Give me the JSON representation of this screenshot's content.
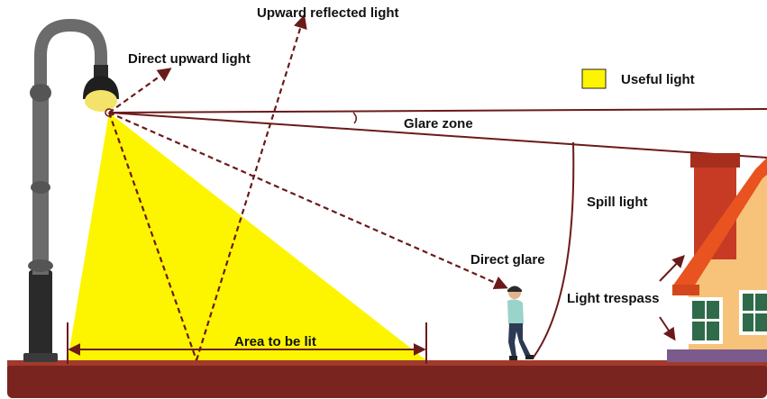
{
  "labels": {
    "upward_reflected": "Upward reflected light",
    "direct_upward": "Direct upward light",
    "useful_light": "Useful light",
    "glare_zone": "Glare zone",
    "spill_light": "Spill light",
    "direct_glare": "Direct glare",
    "light_trespass": "Light trespass",
    "area_to_be_lit": "Area to be lit"
  },
  "colors": {
    "useful_light": "#fdf500",
    "arrows": "#6b1a1a",
    "ground": "#7a2420",
    "pole": "#6b6b6b",
    "pole_base": "#2a2a2a",
    "house_wall": "#f7c27a",
    "roof": "#e8531f",
    "chimney": "#c73a24",
    "window": "#2f6b4a",
    "house_base": "#7b5a8c"
  }
}
